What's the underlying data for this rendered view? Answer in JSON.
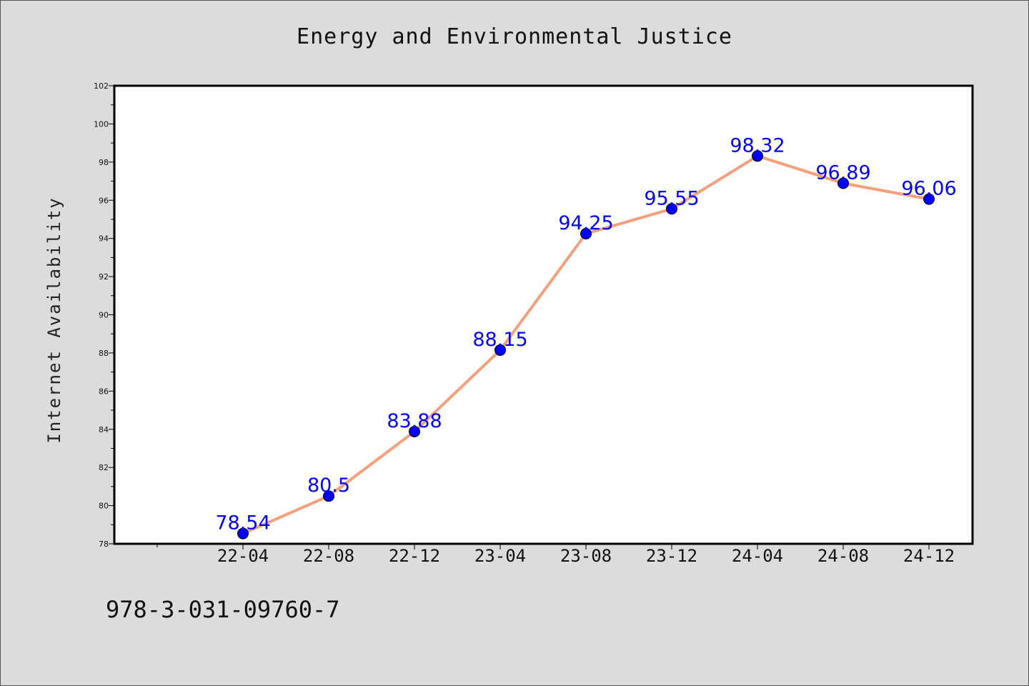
{
  "chart_data": {
    "type": "line",
    "title": "Energy and Environmental Justice",
    "xlabel": "",
    "ylabel": "Internet Availability",
    "categories": [
      "22-04",
      "22-08",
      "22-12",
      "23-04",
      "23-08",
      "23-12",
      "24-04",
      "24-08",
      "24-12"
    ],
    "series": [
      {
        "values": [
          78.54,
          80.5,
          83.88,
          88.15,
          94.25,
          95.55,
          98.32,
          96.89,
          96.06
        ],
        "labels": [
          "78.54",
          "80.5",
          "83.88",
          "88.15",
          "94.25",
          "95.55",
          "98.32",
          "96.89",
          "96.06"
        ],
        "line_color": "#f4a07a",
        "marker_color": "#0000ff"
      }
    ],
    "ylim": [
      78,
      102
    ],
    "yticks": [
      "78",
      "80",
      "82",
      "84",
      "86",
      "88",
      "90",
      "92",
      "94",
      "96",
      "98",
      "100",
      "102"
    ],
    "grid": false,
    "legend": "none"
  },
  "footer": {
    "isbn": "978-3-031-09760-7"
  }
}
